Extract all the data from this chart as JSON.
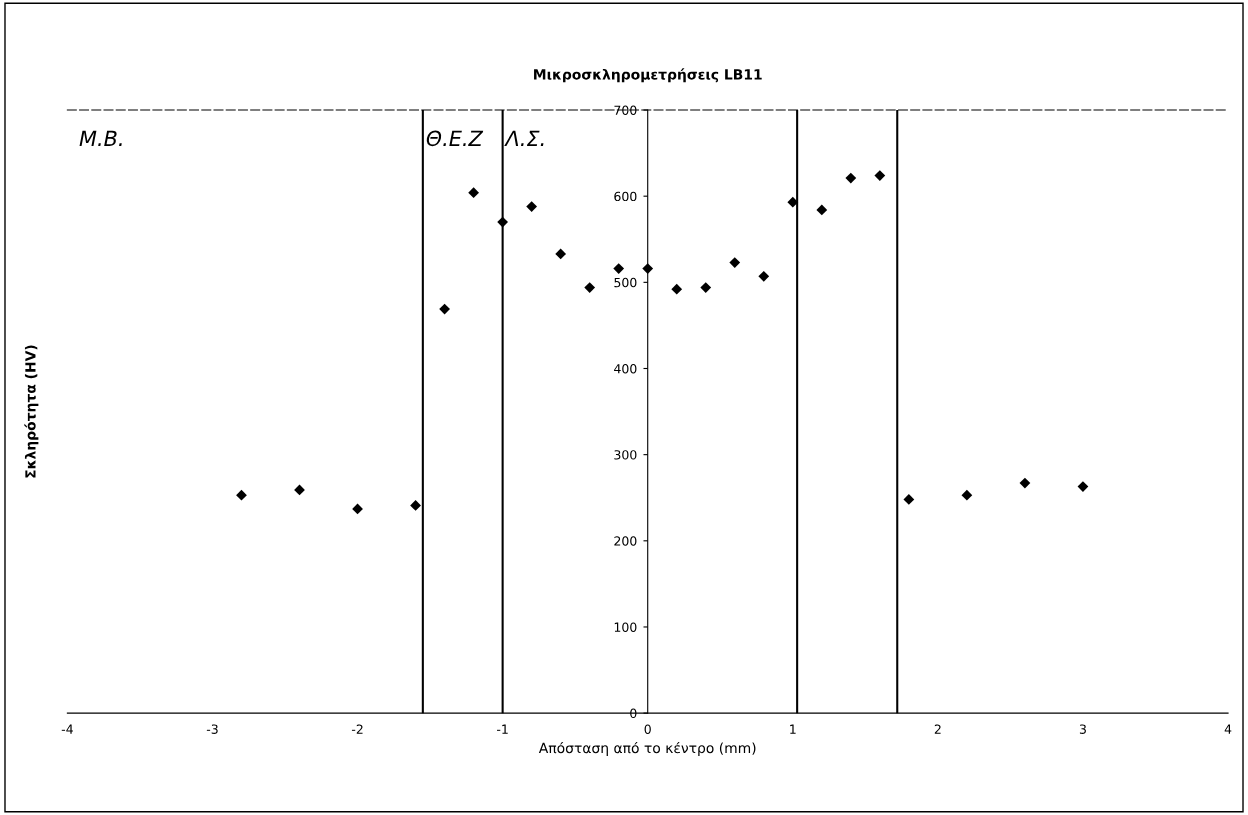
{
  "chart_data": {
    "type": "scatter",
    "title": "Μικροσκληρομετρήσεις LB11",
    "xlabel": "Απόσταση από το κέντρο (mm)",
    "ylabel": "Σκληρότητα (HV)",
    "x": [
      -2.8,
      -2.4,
      -2.0,
      -1.6,
      -1.4,
      -1.2,
      -1.0,
      -0.8,
      -0.6,
      -0.4,
      -0.2,
      0,
      0.2,
      0.4,
      0.6,
      0.8,
      1.0,
      1.2,
      1.4,
      1.6,
      1.8,
      2.2,
      2.6,
      3.0
    ],
    "values": [
      253,
      259,
      237,
      241,
      469,
      604,
      570,
      588,
      533,
      494,
      516,
      516,
      492,
      494,
      523,
      507,
      593,
      584,
      621,
      624,
      248,
      253,
      267,
      263
    ],
    "color": "#000000",
    "marker": "diamond",
    "xlim": [
      -4,
      4
    ],
    "xticks": [
      -4,
      -3,
      -2,
      -1,
      0,
      1,
      2,
      3,
      4
    ],
    "ylim": [
      0,
      700
    ],
    "yticks": [
      0,
      100,
      200,
      300,
      400,
      500,
      600,
      700
    ],
    "ref_lines": [
      {
        "axis": "x",
        "value": -1.55,
        "label": "Θ.Ε.Ζ",
        "color": "#000000"
      },
      {
        "axis": "x",
        "value": -1.0,
        "label": "Λ.Σ.",
        "color": "#000000"
      },
      {
        "axis": "x",
        "value": 1.03,
        "label": null,
        "color": "#000000"
      },
      {
        "axis": "x",
        "value": 1.72,
        "label": null,
        "color": "#000000"
      }
    ],
    "annotations": [
      "Μ.Β."
    ],
    "grid": false,
    "legend": false
  }
}
